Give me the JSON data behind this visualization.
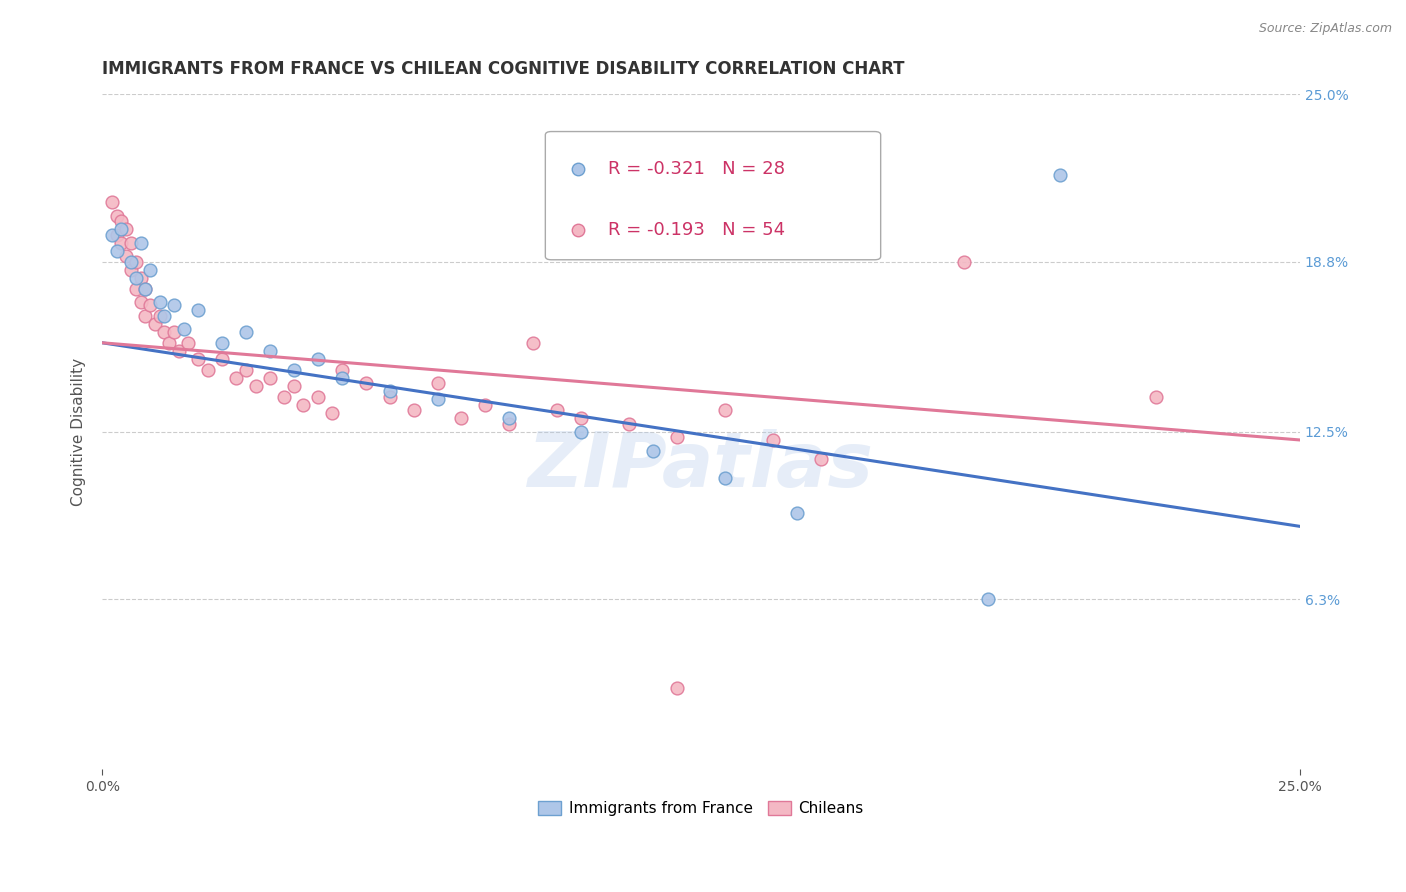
{
  "title": "IMMIGRANTS FROM FRANCE VS CHILEAN COGNITIVE DISABILITY CORRELATION CHART",
  "source": "Source: ZipAtlas.com",
  "ylabel": "Cognitive Disability",
  "xlim": [
    0.0,
    0.25
  ],
  "ylim": [
    0.0,
    0.25
  ],
  "ytick_labels": [
    "6.3%",
    "12.5%",
    "18.8%",
    "25.0%"
  ],
  "ytick_values": [
    0.063,
    0.125,
    0.188,
    0.25
  ],
  "grid_color": "#cccccc",
  "background_color": "#ffffff",
  "watermark": "ZIPatlas",
  "legend_blue_R": "-0.321",
  "legend_blue_N": "28",
  "legend_pink_R": "-0.193",
  "legend_pink_N": "54",
  "blue_label": "Immigrants from France",
  "pink_label": "Chileans",
  "blue_scatter": [
    [
      0.002,
      0.198
    ],
    [
      0.003,
      0.192
    ],
    [
      0.004,
      0.2
    ],
    [
      0.006,
      0.188
    ],
    [
      0.007,
      0.182
    ],
    [
      0.008,
      0.195
    ],
    [
      0.009,
      0.178
    ],
    [
      0.01,
      0.185
    ],
    [
      0.012,
      0.173
    ],
    [
      0.013,
      0.168
    ],
    [
      0.015,
      0.172
    ],
    [
      0.017,
      0.163
    ],
    [
      0.02,
      0.17
    ],
    [
      0.025,
      0.158
    ],
    [
      0.03,
      0.162
    ],
    [
      0.035,
      0.155
    ],
    [
      0.04,
      0.148
    ],
    [
      0.045,
      0.152
    ],
    [
      0.05,
      0.145
    ],
    [
      0.06,
      0.14
    ],
    [
      0.07,
      0.137
    ],
    [
      0.085,
      0.13
    ],
    [
      0.1,
      0.125
    ],
    [
      0.115,
      0.118
    ],
    [
      0.13,
      0.108
    ],
    [
      0.145,
      0.095
    ],
    [
      0.185,
      0.063
    ],
    [
      0.2,
      0.22
    ]
  ],
  "pink_scatter": [
    [
      0.002,
      0.21
    ],
    [
      0.003,
      0.205
    ],
    [
      0.003,
      0.198
    ],
    [
      0.004,
      0.203
    ],
    [
      0.004,
      0.195
    ],
    [
      0.005,
      0.2
    ],
    [
      0.005,
      0.19
    ],
    [
      0.006,
      0.195
    ],
    [
      0.006,
      0.185
    ],
    [
      0.007,
      0.188
    ],
    [
      0.007,
      0.178
    ],
    [
      0.008,
      0.182
    ],
    [
      0.008,
      0.173
    ],
    [
      0.009,
      0.178
    ],
    [
      0.009,
      0.168
    ],
    [
      0.01,
      0.172
    ],
    [
      0.011,
      0.165
    ],
    [
      0.012,
      0.168
    ],
    [
      0.013,
      0.162
    ],
    [
      0.014,
      0.158
    ],
    [
      0.015,
      0.162
    ],
    [
      0.016,
      0.155
    ],
    [
      0.018,
      0.158
    ],
    [
      0.02,
      0.152
    ],
    [
      0.022,
      0.148
    ],
    [
      0.025,
      0.152
    ],
    [
      0.028,
      0.145
    ],
    [
      0.03,
      0.148
    ],
    [
      0.032,
      0.142
    ],
    [
      0.035,
      0.145
    ],
    [
      0.038,
      0.138
    ],
    [
      0.04,
      0.142
    ],
    [
      0.042,
      0.135
    ],
    [
      0.045,
      0.138
    ],
    [
      0.048,
      0.132
    ],
    [
      0.05,
      0.148
    ],
    [
      0.055,
      0.143
    ],
    [
      0.06,
      0.138
    ],
    [
      0.065,
      0.133
    ],
    [
      0.07,
      0.143
    ],
    [
      0.075,
      0.13
    ],
    [
      0.08,
      0.135
    ],
    [
      0.085,
      0.128
    ],
    [
      0.09,
      0.158
    ],
    [
      0.095,
      0.133
    ],
    [
      0.1,
      0.13
    ],
    [
      0.11,
      0.128
    ],
    [
      0.12,
      0.123
    ],
    [
      0.13,
      0.133
    ],
    [
      0.14,
      0.122
    ],
    [
      0.15,
      0.115
    ],
    [
      0.18,
      0.188
    ],
    [
      0.22,
      0.138
    ],
    [
      0.12,
      0.03
    ]
  ],
  "blue_line": {
    "x0": 0.0,
    "y0": 0.158,
    "x1": 0.25,
    "y1": 0.09
  },
  "pink_line": {
    "x0": 0.0,
    "y0": 0.158,
    "x1": 0.25,
    "y1": 0.122
  },
  "blue_color": "#aec6e8",
  "blue_edge_color": "#6da0d0",
  "pink_color": "#f4b8c4",
  "pink_edge_color": "#e07898",
  "blue_line_color": "#4472c4",
  "pink_line_color": "#e07898",
  "marker_size": 85,
  "title_fontsize": 12,
  "axis_label_fontsize": 11,
  "tick_fontsize": 10,
  "legend_fontsize": 13
}
